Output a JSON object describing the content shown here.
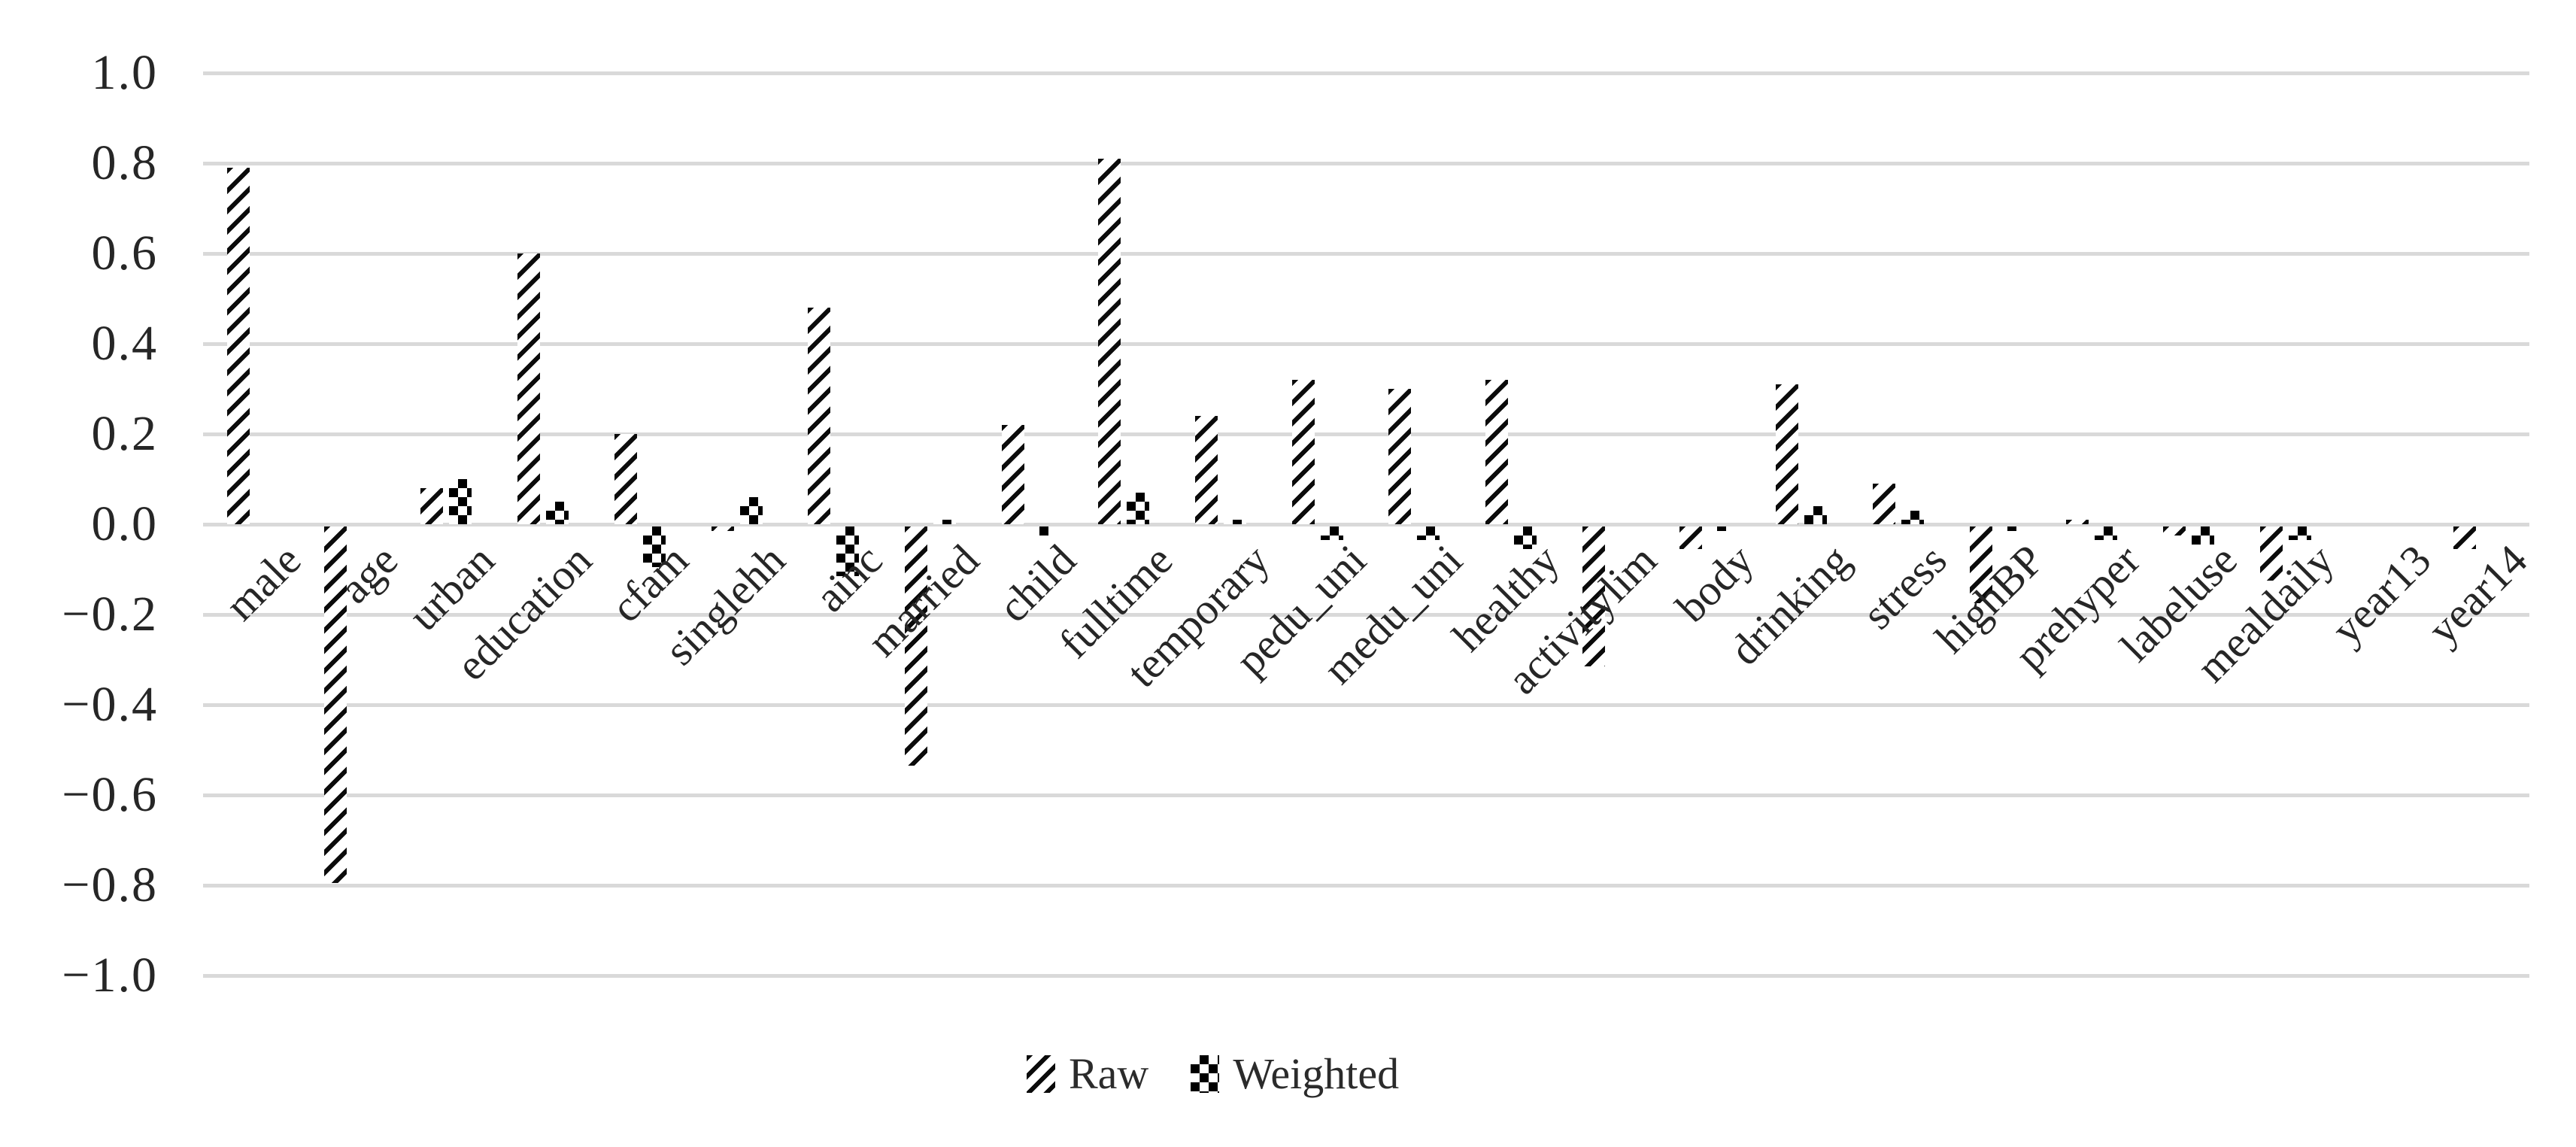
{
  "chart_data": {
    "type": "bar",
    "title": "",
    "xlabel": "",
    "ylabel": "",
    "ylim": [
      -1.0,
      1.0
    ],
    "grid": true,
    "legend_position": "bottom-center",
    "colors": {
      "foreground": "#0b0b0b",
      "background": "#ffffff",
      "gridline": "#d9d9d9",
      "text": "#262626"
    },
    "pattern_styles": {
      "Raw": "diagonal-hatch",
      "Weighted": "checkerboard"
    },
    "y_ticks": [
      {
        "label": "1.0",
        "value": 1.0
      },
      {
        "label": "0.8",
        "value": 0.8
      },
      {
        "label": "0.6",
        "value": 0.6
      },
      {
        "label": "0.4",
        "value": 0.4
      },
      {
        "label": "0.2",
        "value": 0.2
      },
      {
        "label": "0.0",
        "value": 0.0
      },
      {
        "label": "−0.2",
        "value": -0.2
      },
      {
        "label": "−0.4",
        "value": -0.4
      },
      {
        "label": "−0.6",
        "value": -0.6
      },
      {
        "label": "−0.8",
        "value": -0.8
      },
      {
        "label": "−1.0",
        "value": -1.0
      }
    ],
    "categories": [
      "male",
      "age",
      "urban",
      "education",
      "cfam",
      "singlehh",
      "ainc",
      "married",
      "child",
      "fulltime",
      "temporary",
      "pedu_uni",
      "medu_uni",
      "healthy",
      "activitylim",
      "body",
      "drinking",
      "stress",
      "highBP",
      "prehyper",
      "labeluse",
      "mealdaily",
      "year13",
      "year14"
    ],
    "series": [
      {
        "name": "Raw",
        "values": [
          0.79,
          -0.79,
          0.08,
          0.6,
          0.2,
          -0.01,
          0.48,
          -0.53,
          0.22,
          0.81,
          0.24,
          0.32,
          0.3,
          0.32,
          -0.31,
          -0.05,
          0.31,
          0.09,
          -0.17,
          0.01,
          -0.02,
          -0.12,
          0.0,
          -0.05
        ]
      },
      {
        "name": "Weighted",
        "values": [
          0.0,
          0.0,
          0.1,
          0.05,
          -0.09,
          0.06,
          -0.11,
          0.01,
          -0.02,
          0.07,
          0.01,
          -0.03,
          -0.03,
          -0.05,
          0.0,
          -0.01,
          0.04,
          0.03,
          -0.01,
          -0.03,
          -0.04,
          -0.03,
          0.0,
          0.0
        ]
      }
    ]
  }
}
